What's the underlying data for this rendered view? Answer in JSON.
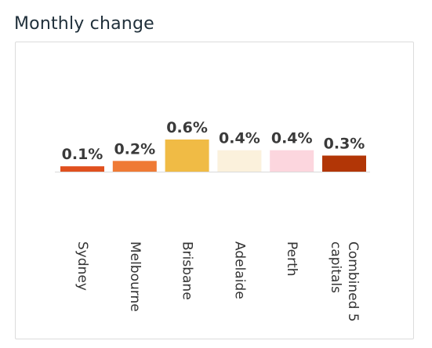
{
  "header": {
    "title": "Monthly change"
  },
  "chart_data": {
    "type": "bar",
    "title": "",
    "categories": [
      "Sydney",
      "Melbourne",
      "Brisbane",
      "Adelaide",
      "Perth",
      "Combined 5 capitals"
    ],
    "category_lines": [
      [
        "Sydney"
      ],
      [
        "Melbourne"
      ],
      [
        "Brisbane"
      ],
      [
        "Adelaide"
      ],
      [
        "Perth"
      ],
      [
        "Combined 5",
        "capitals"
      ]
    ],
    "values": [
      0.1,
      0.2,
      0.6,
      0.4,
      0.4,
      0.3
    ],
    "value_labels": [
      "0.1%",
      "0.2%",
      "0.6%",
      "0.4%",
      "0.4%",
      "0.3%"
    ],
    "colors": [
      "#e0501e",
      "#ef7a35",
      "#f0bb45",
      "#fbf1dc",
      "#fcd6de",
      "#b23606"
    ],
    "ylim": [
      0,
      0.6
    ],
    "grid": false,
    "legend": "none",
    "xlabel": "",
    "ylabel": ""
  }
}
